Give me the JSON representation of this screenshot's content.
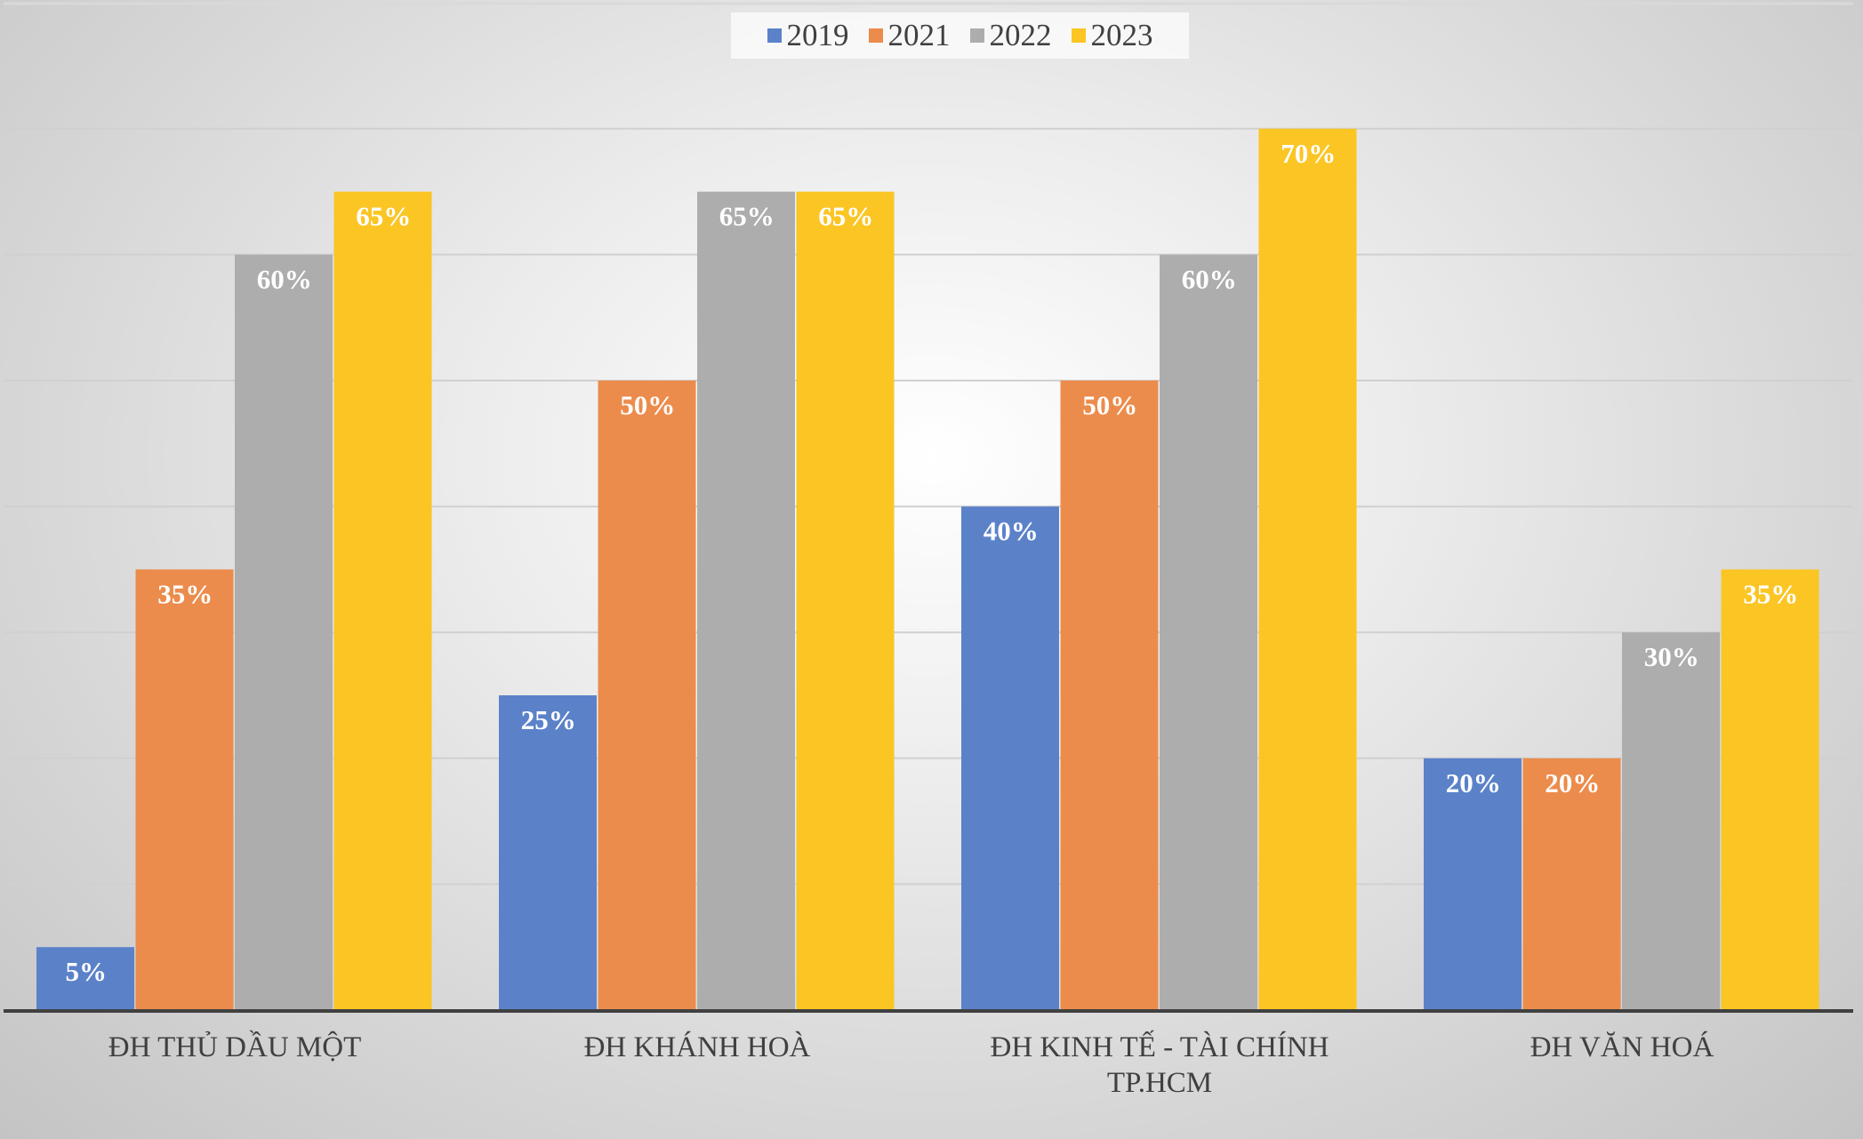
{
  "chart_data": {
    "type": "bar",
    "categories": [
      "ĐH THỦ DẦU MỘT",
      "ĐH KHÁNH HOÀ",
      "ĐH KINH TẾ - TÀI CHÍNH TP.HCM",
      "ĐH VĂN HOÁ"
    ],
    "category_lines": [
      [
        "ĐH THỦ DẦU MỘT"
      ],
      [
        "ĐH KHÁNH HOÀ"
      ],
      [
        "ĐH KINH TẾ - TÀI CHÍNH",
        "TP.HCM"
      ],
      [
        "ĐH VĂN HOÁ"
      ]
    ],
    "series": [
      {
        "name": "2019",
        "values": [
          5,
          25,
          40,
          20
        ],
        "color": "#5b82c9"
      },
      {
        "name": "2021",
        "values": [
          35,
          50,
          50,
          20
        ],
        "color": "#ec8c4c"
      },
      {
        "name": "2022",
        "values": [
          60,
          65,
          60,
          30
        ],
        "color": "#adadad"
      },
      {
        "name": "2023",
        "values": [
          65,
          65,
          70,
          35
        ],
        "color": "#fbc524"
      }
    ],
    "value_suffix": "%",
    "ylim": [
      0,
      70
    ],
    "grid": true,
    "grid_step": 10,
    "y_axis_labels_shown": false,
    "legend_position": "top",
    "title": "",
    "xlabel": "",
    "ylabel": ""
  }
}
